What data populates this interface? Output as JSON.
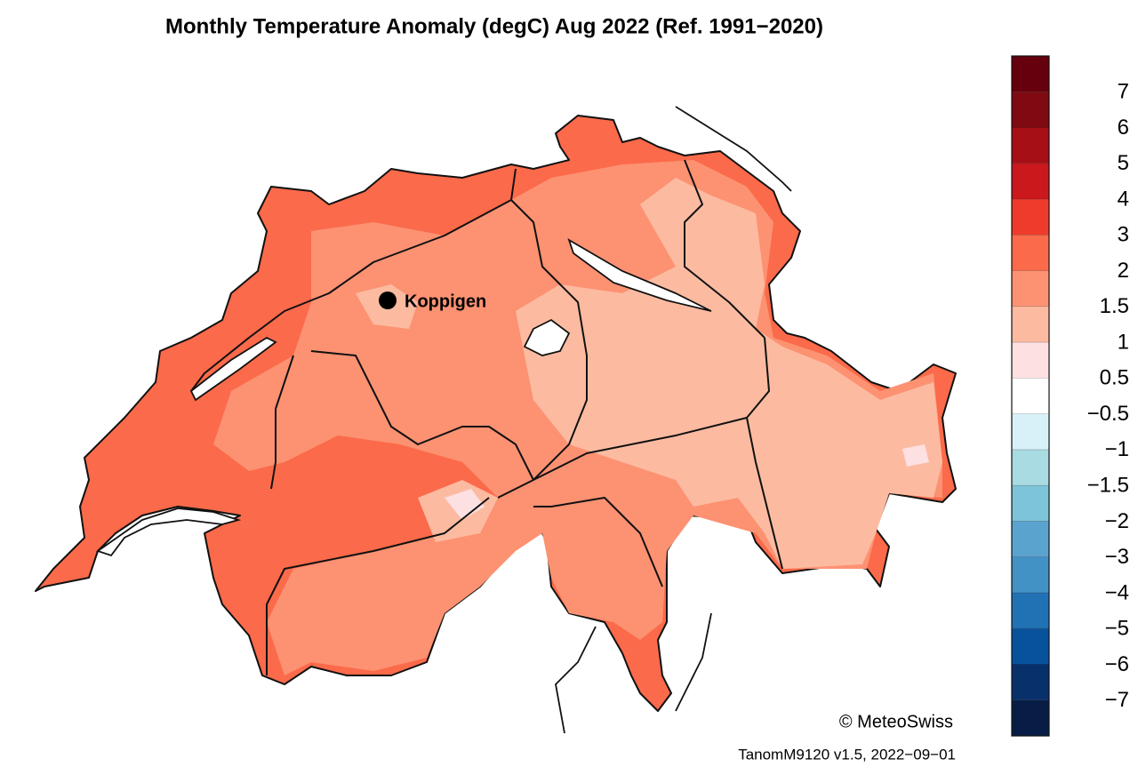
{
  "header": {
    "title": "Monthly Temperature Anomaly (degC) Aug 2022  (Ref. 1991−2020)"
  },
  "location": {
    "label": "Koppigen"
  },
  "credit": "© MeteoSwiss",
  "version": "TanomM9120 v1.5, 2022−09−01",
  "legend": {
    "colors": [
      "#67000d",
      "#7f0a12",
      "#a50f15",
      "#cb181d",
      "#ef3b2c",
      "#fb6a4a",
      "#fc9272",
      "#fcbba1",
      "#fde0e2",
      "#ffffff",
      "#d8f1f8",
      "#a8dbe2",
      "#7ec4d8",
      "#5ba3cf",
      "#4292c6",
      "#2171b5",
      "#08519c",
      "#08306b",
      "#081d45"
    ],
    "ticks": [
      7,
      6,
      5,
      4,
      3,
      2,
      1.5,
      1,
      0.5,
      {
        "value": -0.5,
        "label": "−0.5"
      },
      {
        "value": -1,
        "label": "−1"
      },
      {
        "value": -1.5,
        "label": "−1.5"
      },
      {
        "value": -2,
        "label": "−2"
      },
      {
        "value": -3,
        "label": "−3"
      },
      {
        "value": -4,
        "label": "−4"
      },
      {
        "value": -5,
        "label": "−5"
      },
      {
        "value": -6,
        "label": "−6"
      },
      {
        "value": -7,
        "label": "−7"
      }
    ]
  }
}
